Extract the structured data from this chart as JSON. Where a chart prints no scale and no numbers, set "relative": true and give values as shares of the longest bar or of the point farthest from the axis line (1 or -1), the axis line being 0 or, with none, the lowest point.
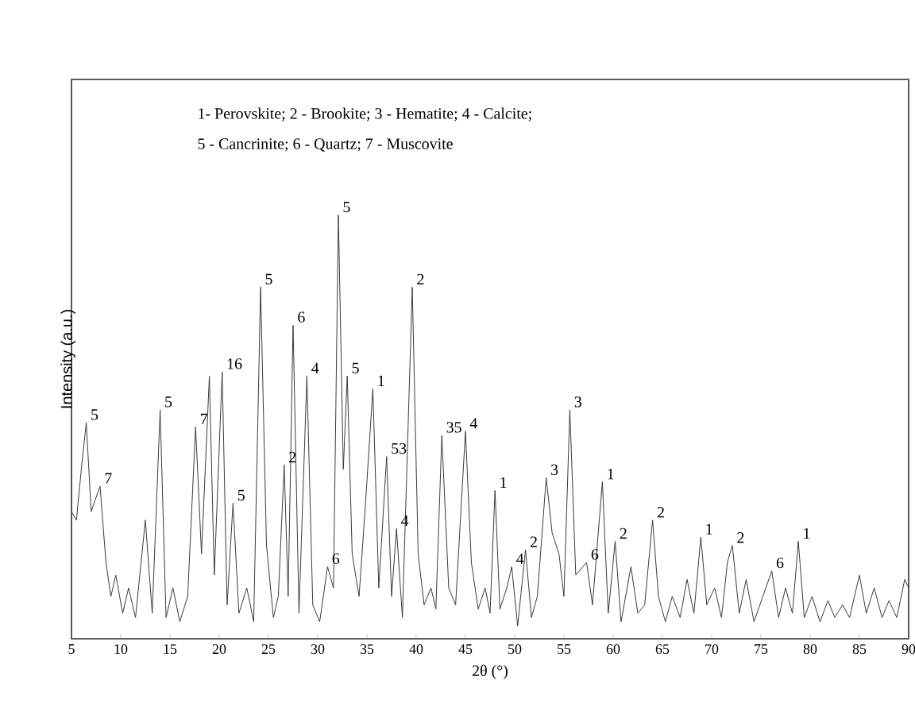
{
  "chart_data": {
    "type": "line",
    "relative": true,
    "xlabel": "2θ (°)",
    "ylabel": "Intensity (a.u.)",
    "xlim": [
      5,
      90
    ],
    "xticks": [
      5,
      10,
      15,
      20,
      25,
      30,
      35,
      40,
      45,
      50,
      55,
      60,
      65,
      70,
      75,
      80,
      85,
      90
    ],
    "grid": false,
    "marker": "none",
    "line_style": "solid",
    "series": [
      {
        "color": "#3a3a3a",
        "x": [
          5.0,
          5.5,
          6.0,
          6.5,
          7.0,
          7.9,
          8.5,
          9.0,
          9.5,
          10.2,
          10.8,
          11.5,
          12.5,
          13.2,
          14.0,
          14.6,
          15.3,
          16.0,
          16.8,
          17.6,
          18.2,
          19.0,
          19.5,
          20.3,
          20.8,
          21.4,
          22.0,
          22.8,
          23.5,
          24.2,
          24.8,
          25.5,
          26.0,
          26.6,
          27.0,
          27.5,
          28.1,
          28.9,
          29.5,
          30.2,
          31.0,
          31.6,
          32.1,
          32.6,
          33.0,
          33.5,
          34.2,
          34.8,
          35.6,
          36.2,
          37.0,
          37.5,
          38.0,
          38.6,
          39.6,
          40.2,
          40.8,
          41.5,
          42.0,
          42.6,
          43.3,
          44.0,
          45.0,
          45.6,
          46.3,
          47.0,
          47.5,
          48.0,
          48.5,
          49.2,
          49.7,
          50.3,
          51.1,
          51.7,
          52.3,
          53.2,
          53.8,
          54.5,
          55.0,
          55.6,
          56.2,
          57.3,
          57.9,
          58.9,
          59.5,
          60.2,
          60.8,
          61.8,
          62.5,
          63.2,
          64.0,
          64.6,
          65.3,
          66.0,
          66.8,
          67.5,
          68.2,
          68.9,
          69.5,
          70.3,
          71.0,
          71.6,
          72.1,
          72.8,
          73.5,
          74.3,
          75.2,
          76.1,
          76.8,
          77.5,
          78.2,
          78.8,
          79.4,
          80.2,
          81.0,
          81.8,
          82.5,
          83.3,
          84.0,
          85.0,
          85.7,
          86.5,
          87.3,
          88.0,
          88.8,
          89.6,
          90.0
        ],
        "values": [
          0.3,
          0.28,
          0.4,
          0.51,
          0.3,
          0.36,
          0.18,
          0.1,
          0.15,
          0.06,
          0.12,
          0.05,
          0.28,
          0.06,
          0.54,
          0.05,
          0.12,
          0.04,
          0.1,
          0.5,
          0.2,
          0.62,
          0.15,
          0.63,
          0.08,
          0.32,
          0.06,
          0.12,
          0.04,
          0.83,
          0.22,
          0.05,
          0.1,
          0.41,
          0.1,
          0.74,
          0.06,
          0.62,
          0.08,
          0.04,
          0.17,
          0.12,
          1.0,
          0.4,
          0.62,
          0.2,
          0.1,
          0.3,
          0.59,
          0.12,
          0.43,
          0.1,
          0.26,
          0.05,
          0.83,
          0.2,
          0.08,
          0.12,
          0.07,
          0.48,
          0.12,
          0.08,
          0.49,
          0.18,
          0.07,
          0.12,
          0.06,
          0.35,
          0.07,
          0.12,
          0.17,
          0.03,
          0.21,
          0.05,
          0.1,
          0.38,
          0.25,
          0.2,
          0.1,
          0.54,
          0.15,
          0.18,
          0.08,
          0.37,
          0.06,
          0.23,
          0.04,
          0.17,
          0.06,
          0.08,
          0.28,
          0.1,
          0.04,
          0.1,
          0.05,
          0.14,
          0.06,
          0.24,
          0.08,
          0.12,
          0.05,
          0.18,
          0.22,
          0.06,
          0.14,
          0.04,
          0.1,
          0.16,
          0.05,
          0.12,
          0.06,
          0.23,
          0.05,
          0.1,
          0.04,
          0.09,
          0.05,
          0.08,
          0.05,
          0.15,
          0.06,
          0.12,
          0.05,
          0.09,
          0.05,
          0.14,
          0.12
        ]
      }
    ],
    "annotations": [
      "1- Perovskite; 2 - Brookite; 3 - Hematite; 4 - Calcite;",
      "5 - Cancrinite; 6 - Quartz; 7 - Muscovite",
      {
        "text": "5",
        "x": 6.5,
        "y": 0.51
      },
      {
        "text": "7",
        "x": 7.9,
        "y": 0.36
      },
      {
        "text": "5",
        "x": 14.0,
        "y": 0.54
      },
      {
        "text": "7",
        "x": 17.6,
        "y": 0.5
      },
      {
        "text": "16",
        "x": 20.3,
        "y": 0.63
      },
      {
        "text": "5",
        "x": 21.4,
        "y": 0.32
      },
      {
        "text": "5",
        "x": 24.2,
        "y": 0.83
      },
      {
        "text": "2",
        "x": 26.6,
        "y": 0.41
      },
      {
        "text": "6",
        "x": 27.5,
        "y": 0.74
      },
      {
        "text": "4",
        "x": 28.9,
        "y": 0.62
      },
      {
        "text": "6",
        "x": 31.0,
        "y": 0.17
      },
      {
        "text": "5",
        "x": 32.1,
        "y": 1.0
      },
      {
        "text": "5",
        "x": 33.0,
        "y": 0.62
      },
      {
        "text": "1",
        "x": 35.6,
        "y": 0.59
      },
      {
        "text": "53",
        "x": 37.0,
        "y": 0.43
      },
      {
        "text": "4",
        "x": 38.0,
        "y": 0.26
      },
      {
        "text": "2",
        "x": 39.6,
        "y": 0.83
      },
      {
        "text": "35",
        "x": 42.6,
        "y": 0.48
      },
      {
        "text": "4",
        "x": 45.0,
        "y": 0.49
      },
      {
        "text": "1",
        "x": 48.0,
        "y": 0.35
      },
      {
        "text": "4",
        "x": 49.7,
        "y": 0.17
      },
      {
        "text": "2",
        "x": 51.1,
        "y": 0.21
      },
      {
        "text": "3",
        "x": 53.2,
        "y": 0.38
      },
      {
        "text": "3",
        "x": 55.6,
        "y": 0.54
      },
      {
        "text": "6",
        "x": 57.3,
        "y": 0.18
      },
      {
        "text": "1",
        "x": 58.9,
        "y": 0.37
      },
      {
        "text": "2",
        "x": 60.2,
        "y": 0.23
      },
      {
        "text": "2",
        "x": 64.0,
        "y": 0.28
      },
      {
        "text": "1",
        "x": 68.9,
        "y": 0.24
      },
      {
        "text": "2",
        "x": 72.1,
        "y": 0.22
      },
      {
        "text": "6",
        "x": 76.1,
        "y": 0.16
      },
      {
        "text": "1",
        "x": 78.8,
        "y": 0.23
      }
    ]
  }
}
